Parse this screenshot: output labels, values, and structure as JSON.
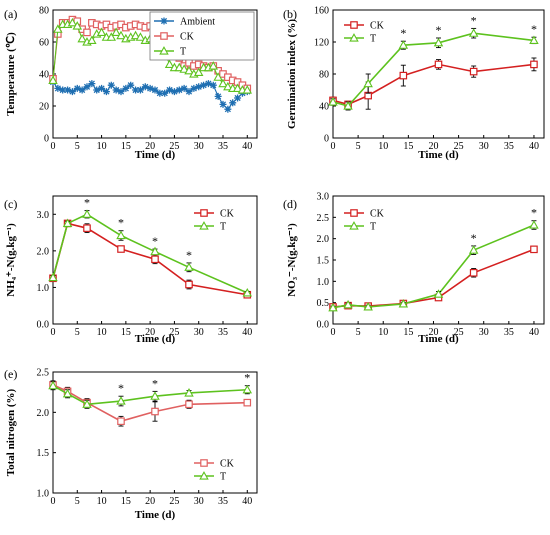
{
  "figure": {
    "colors": {
      "ambient": "#1f6fb2",
      "ck_light": "#e06060",
      "ck_dark": "#d42020",
      "t": "#5dc21e",
      "axis": "#000000"
    }
  },
  "chart_data": [
    {
      "type": "line",
      "panel": "(a)",
      "xlabel": "Time (d)",
      "ylabel": "Temperature (℃)",
      "xlim": [
        0,
        42
      ],
      "ylim": [
        0,
        80
      ],
      "xticks": [
        "0",
        "5",
        "10",
        "15",
        "20",
        "25",
        "30",
        "35",
        "40"
      ],
      "yticks": [
        "0",
        "20",
        "40",
        "60",
        "80"
      ],
      "legend_position": "top-right",
      "series": [
        {
          "name": "Ambient",
          "marker": "star",
          "color": "#1f6fb2",
          "x": [
            0,
            1,
            2,
            3,
            4,
            5,
            6,
            7,
            8,
            9,
            10,
            11,
            12,
            13,
            14,
            15,
            16,
            17,
            18,
            19,
            20,
            21,
            22,
            23,
            24,
            25,
            26,
            27,
            28,
            29,
            30,
            31,
            32,
            33,
            34,
            35,
            36,
            37,
            38,
            39,
            40
          ],
          "y": [
            35,
            31,
            30,
            30,
            29,
            31,
            30,
            32,
            34,
            30,
            31,
            29,
            33,
            30,
            29,
            31,
            33,
            30,
            30,
            32,
            31,
            30,
            28,
            28,
            30,
            29,
            30,
            31,
            29,
            31,
            32,
            33,
            34,
            33,
            26,
            21,
            18,
            22,
            25,
            28,
            29
          ]
        },
        {
          "name": "CK",
          "marker": "square",
          "color": "#e06060",
          "x": [
            0,
            1,
            2,
            3,
            4,
            5,
            6,
            7,
            8,
            9,
            10,
            11,
            12,
            13,
            14,
            15,
            16,
            17,
            18,
            19,
            20,
            21,
            22,
            23,
            24,
            25,
            26,
            27,
            28,
            29,
            30,
            31,
            32,
            33,
            34,
            35,
            36,
            37,
            38,
            39,
            40
          ],
          "y": [
            37,
            65,
            72,
            72,
            74,
            73,
            68,
            66,
            72,
            71,
            70,
            71,
            69,
            70,
            71,
            69,
            70,
            71,
            70,
            69,
            70,
            68,
            66,
            64,
            58,
            54,
            50,
            45,
            47,
            45,
            46,
            45,
            44,
            45,
            42,
            40,
            38,
            36,
            35,
            33,
            31
          ]
        },
        {
          "name": "T",
          "marker": "triangle",
          "color": "#5dc21e",
          "x": [
            0,
            1,
            2,
            3,
            4,
            5,
            6,
            7,
            8,
            9,
            10,
            11,
            12,
            13,
            14,
            15,
            16,
            17,
            18,
            19,
            20,
            21,
            22,
            23,
            24,
            25,
            26,
            27,
            28,
            29,
            30,
            31,
            32,
            33,
            34,
            35,
            36,
            37,
            38,
            39,
            40
          ],
          "y": [
            36,
            68,
            71,
            71,
            72,
            70,
            62,
            60,
            61,
            65,
            66,
            63,
            63,
            66,
            64,
            62,
            63,
            64,
            63,
            61,
            62,
            60,
            58,
            54,
            46,
            44,
            44,
            43,
            42,
            40,
            41,
            44,
            44,
            45,
            38,
            34,
            32,
            31,
            31,
            30,
            30
          ]
        }
      ]
    },
    {
      "type": "line",
      "panel": "(b)",
      "xlabel": "Time (d)",
      "ylabel": "Germination index (%)",
      "xlim": [
        0,
        42
      ],
      "ylim": [
        0,
        160
      ],
      "xticks": [
        "0",
        "5",
        "10",
        "15",
        "20",
        "25",
        "30",
        "35",
        "40"
      ],
      "yticks": [
        "0",
        "40",
        "80",
        "120",
        "160"
      ],
      "legend_position": "top-left",
      "significance_marks": [
        {
          "x": 14,
          "label": "*"
        },
        {
          "x": 21,
          "label": "*"
        },
        {
          "x": 28,
          "label": "*"
        },
        {
          "x": 40,
          "label": "*"
        }
      ],
      "series": [
        {
          "name": "CK",
          "marker": "square",
          "color": "#d42020",
          "x": [
            0,
            3,
            7,
            14,
            21,
            28,
            40
          ],
          "y": [
            47,
            42,
            53,
            78,
            92,
            83,
            92
          ],
          "err": [
            4,
            4,
            17,
            13,
            6,
            7,
            8
          ]
        },
        {
          "name": "T",
          "marker": "triangle",
          "color": "#5dc21e",
          "x": [
            0,
            3,
            7,
            14,
            21,
            28,
            40
          ],
          "y": [
            45,
            40,
            68,
            116,
            119,
            131,
            122
          ],
          "err": [
            4,
            5,
            12,
            5,
            6,
            6,
            4
          ]
        }
      ]
    },
    {
      "type": "line",
      "panel": "(c)",
      "xlabel": "Time (d)",
      "ylabel": "NH₄⁺-N(g.kg⁻¹)",
      "xlim": [
        0,
        42
      ],
      "ylim": [
        0,
        3.5
      ],
      "xticks": [
        "0",
        "5",
        "10",
        "15",
        "20",
        "25",
        "30",
        "35",
        "40"
      ],
      "yticks": [
        "0.0",
        "1.0",
        "2.0",
        "3.0"
      ],
      "legend_position": "top-right",
      "significance_marks": [
        {
          "x": 7,
          "label": "*"
        },
        {
          "x": 14,
          "label": "*"
        },
        {
          "x": 21,
          "label": "*"
        },
        {
          "x": 28,
          "label": "*"
        }
      ],
      "series": [
        {
          "name": "CK",
          "marker": "square",
          "color": "#d42020",
          "x": [
            0,
            3,
            7,
            14,
            21,
            28,
            40
          ],
          "y": [
            1.25,
            2.75,
            2.62,
            2.05,
            1.77,
            1.08,
            0.8
          ],
          "err": [
            0.05,
            0.06,
            0.12,
            0.08,
            0.12,
            0.12,
            0.04
          ]
        },
        {
          "name": "T",
          "marker": "triangle",
          "color": "#5dc21e",
          "x": [
            0,
            3,
            7,
            14,
            21,
            28,
            40
          ],
          "y": [
            1.27,
            2.75,
            3.0,
            2.42,
            1.98,
            1.55,
            0.85
          ],
          "err": [
            0.05,
            0.06,
            0.1,
            0.13,
            0.07,
            0.12,
            0.04
          ]
        }
      ]
    },
    {
      "type": "line",
      "panel": "(d)",
      "xlabel": "Time (d)",
      "ylabel": "NO₃⁻-N(g.kg⁻¹)",
      "xlim": [
        0,
        42
      ],
      "ylim": [
        0,
        3.0
      ],
      "xticks": [
        "0",
        "5",
        "10",
        "15",
        "20",
        "25",
        "30",
        "35",
        "40"
      ],
      "yticks": [
        "0.0",
        "0.5",
        "1.0",
        "1.5",
        "2.0",
        "2.5",
        "3.0"
      ],
      "legend_position": "top-left",
      "significance_marks": [
        {
          "x": 28,
          "label": "*"
        },
        {
          "x": 40,
          "label": "*"
        }
      ],
      "series": [
        {
          "name": "CK",
          "marker": "square",
          "color": "#d42020",
          "x": [
            0,
            3,
            7,
            14,
            21,
            28,
            40
          ],
          "y": [
            0.4,
            0.43,
            0.42,
            0.48,
            0.62,
            1.2,
            1.75
          ],
          "err": [
            0.05,
            0.04,
            0.04,
            0.04,
            0.05,
            0.1,
            0.07
          ]
        },
        {
          "name": "T",
          "marker": "triangle",
          "color": "#5dc21e",
          "x": [
            0,
            3,
            7,
            14,
            21,
            28,
            40
          ],
          "y": [
            0.38,
            0.45,
            0.4,
            0.47,
            0.7,
            1.73,
            2.32
          ],
          "err": [
            0.04,
            0.04,
            0.04,
            0.04,
            0.06,
            0.1,
            0.1
          ]
        }
      ]
    },
    {
      "type": "line",
      "panel": "(e)",
      "xlabel": "Time (d)",
      "ylabel": "Total nitrogen (%)",
      "xlim": [
        0,
        42
      ],
      "ylim": [
        1.0,
        2.5
      ],
      "xticks": [
        "0",
        "5",
        "10",
        "15",
        "20",
        "25",
        "30",
        "35",
        "40"
      ],
      "yticks": [
        "1.0",
        "1.5",
        "2.0",
        "2.5"
      ],
      "legend_position": "bottom-right",
      "significance_marks": [
        {
          "x": 14,
          "label": "*"
        },
        {
          "x": 21,
          "label": "*"
        },
        {
          "x": 40,
          "label": "*"
        }
      ],
      "series": [
        {
          "name": "CK",
          "marker": "square",
          "color": "#e06060",
          "x": [
            0,
            3,
            7,
            14,
            21,
            28,
            40
          ],
          "y": [
            2.34,
            2.26,
            2.12,
            1.89,
            2.01,
            2.1,
            2.12
          ],
          "err": [
            0.05,
            0.05,
            0.05,
            0.06,
            0.12,
            0.05,
            0.02
          ]
        },
        {
          "name": "T",
          "marker": "triangle",
          "color": "#5dc21e",
          "x": [
            0,
            3,
            7,
            14,
            21,
            28,
            40
          ],
          "y": [
            2.33,
            2.23,
            2.1,
            2.14,
            2.2,
            2.24,
            2.28
          ],
          "err": [
            0.05,
            0.05,
            0.05,
            0.06,
            0.06,
            0.03,
            0.05
          ]
        }
      ]
    }
  ]
}
